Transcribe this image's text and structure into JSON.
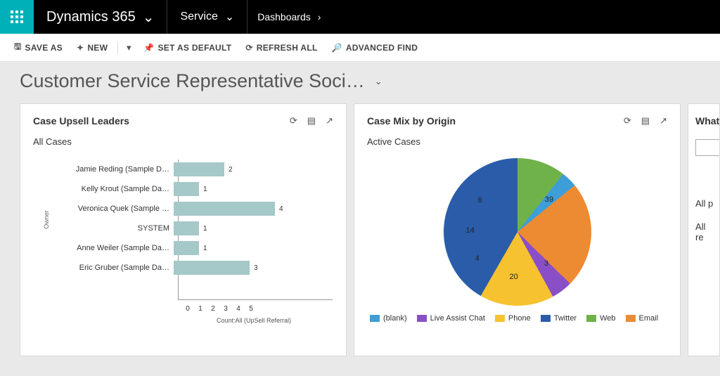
{
  "topnav": {
    "brand": "Dynamics 365",
    "module": "Service",
    "breadcrumb": "Dashboards"
  },
  "toolbar": {
    "save_as": "SAVE AS",
    "new": "NEW",
    "set_default": "SET AS DEFAULT",
    "refresh_all": "REFRESH ALL",
    "advanced_find": "ADVANCED FIND"
  },
  "page": {
    "title": "Customer Service Representative Soci…"
  },
  "card1": {
    "title": "Case Upsell Leaders",
    "subtitle": "All Cases",
    "y_axis_label": "Owner",
    "x_axis_label": "Count:All (UpSell Referral)",
    "bar_color": "#a5c8c8",
    "x_max": 5,
    "x_tick_step": 1,
    "rows": [
      {
        "label": "Jamie Reding (Sample D…",
        "value": 2
      },
      {
        "label": "Kelly Krout (Sample Da…",
        "value": 1
      },
      {
        "label": "Veronica Quek (Sample …",
        "value": 4
      },
      {
        "label": "SYSTEM",
        "value": 1
      },
      {
        "label": "Anne Weiler (Sample Da…",
        "value": 1
      },
      {
        "label": "Eric Gruber (Sample Da…",
        "value": 3
      }
    ]
  },
  "card2": {
    "title": "Case Mix by Origin",
    "subtitle": "Active Cases",
    "slices": [
      {
        "label": "Web",
        "value": 39,
        "color": "#6fb24a"
      },
      {
        "label": "(blank)",
        "value": 3,
        "color": "#3d9ed8"
      },
      {
        "label": "Email",
        "value": 20,
        "color": "#ed8b33"
      },
      {
        "label": "Live Assist Chat",
        "value": 4,
        "color": "#8a4fc7"
      },
      {
        "label": "Phone",
        "value": 14,
        "color": "#f6c22f"
      },
      {
        "label": "Twitter",
        "value": 6,
        "color": "#2a5caa"
      }
    ],
    "legend_order": [
      "(blank)",
      "Live Assist Chat",
      "Phone",
      "Twitter",
      "Web",
      "Email"
    ]
  },
  "card3": {
    "title": "What",
    "link1": "All p",
    "link2": "All re"
  }
}
